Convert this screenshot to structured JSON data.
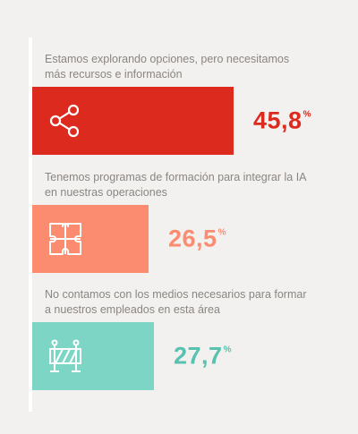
{
  "chart_data": {
    "type": "bar",
    "orientation": "horizontal",
    "categories": [
      "Estamos explorando opciones, pero necesitamos más recursos e información",
      "Tenemos programas de formación para integrar la IA en nuestras operaciones",
      "No contamos con los medios necesarios para formar a nuestros empleados en esta área"
    ],
    "values": [
      45.8,
      26.5,
      27.7
    ],
    "value_labels": [
      "45,8",
      "26,5",
      "27,7"
    ],
    "unit": "%",
    "colors": [
      "#dc2a1e",
      "#fb8c70",
      "#7dd5c6"
    ],
    "icons": [
      "share-icon",
      "puzzle-icon",
      "barrier-icon"
    ],
    "grid": false
  },
  "rows": [
    {
      "label": "Estamos explorando opciones, pero necesitamos más recursos e información",
      "value_text": "45,8",
      "unit": "%"
    },
    {
      "label": "Tenemos programas de formación para integrar la IA en nuestras operaciones",
      "value_text": "26,5",
      "unit": "%"
    },
    {
      "label": "No contamos con los medios necesarios para formar a nuestros empleados en esta área",
      "value_text": "27,7",
      "unit": "%"
    }
  ]
}
